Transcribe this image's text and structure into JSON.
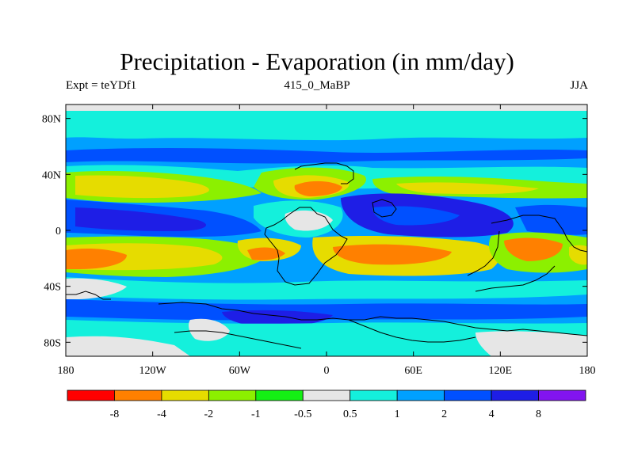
{
  "title": "Precipitation - Evaporation (in mm/day)",
  "subtitle_left": "Expt = teYDf1",
  "subtitle_center": "415_0_MaBP",
  "subtitle_right": "JJA",
  "map": {
    "lon_range": [
      -180,
      180
    ],
    "lat_range": [
      -90,
      90
    ],
    "lat_ticks": [
      {
        "value": 80,
        "label": "80N"
      },
      {
        "value": 40,
        "label": "40N"
      },
      {
        "value": 0,
        "label": "0"
      },
      {
        "value": -40,
        "label": "40S"
      },
      {
        "value": -80,
        "label": "80S"
      }
    ],
    "lon_ticks": [
      {
        "value": -180,
        "label": "180"
      },
      {
        "value": -120,
        "label": "120W"
      },
      {
        "value": -60,
        "label": "60W"
      },
      {
        "value": 0,
        "label": "0"
      },
      {
        "value": 60,
        "label": "60E"
      },
      {
        "value": 120,
        "label": "120E"
      },
      {
        "value": 180,
        "label": "180"
      }
    ]
  },
  "colorbar": {
    "colors": [
      "#ff0000",
      "#ff8000",
      "#e6dc00",
      "#8cf000",
      "#14f014",
      "#e6e6e6",
      "#14f0dc",
      "#00a0ff",
      "#0050ff",
      "#1e1ee6",
      "#8214f0"
    ],
    "labels": [
      "-8",
      "-4",
      "-2",
      "-1",
      "-0.5",
      "0.5",
      "1",
      "2",
      "4",
      "8"
    ]
  }
}
